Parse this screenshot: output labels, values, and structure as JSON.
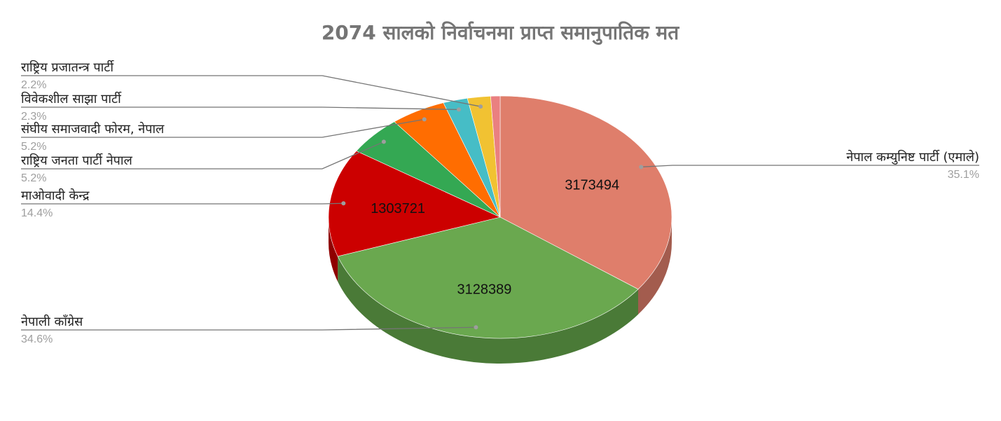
{
  "chart_data": {
    "type": "pie",
    "title": "2074 सालको निर्वाचनमा प्राप्त समानुपातिक मत",
    "slices": [
      {
        "label": "नेपाल कम्युनिष्ट पार्टी (एमाले)",
        "percent": "35.1%",
        "value": 3173494,
        "value_label": "3173494",
        "color": "#df7e6b",
        "side": "#a35c4e"
      },
      {
        "label": "नेपाली काँग्रेस",
        "percent": "34.6%",
        "value": 3128389,
        "value_label": "3128389",
        "color": "#6aa84f",
        "side": "#4a7a37"
      },
      {
        "label": "माओवादी केन्द्र",
        "percent": "14.4%",
        "value": 1303721,
        "value_label": "1303721",
        "color": "#cc0000",
        "side": "#8f0000"
      },
      {
        "label": "राष्ट्रिय जनता पार्टी नेपाल",
        "percent": "5.2%",
        "value": 472254,
        "value_label": "",
        "color": "#34a853",
        "side": "#25763b"
      },
      {
        "label": "संघीय समाजवादी फोरम, नेपाल",
        "percent": "5.2%",
        "value": 470201,
        "value_label": "",
        "color": "#ff6d01",
        "side": "#b34d01"
      },
      {
        "label": "विवेकशील साझा पार्टी",
        "percent": "2.3%",
        "value": 208000,
        "value_label": "",
        "color": "#46bdc6",
        "side": "#31858b"
      },
      {
        "label": "राष्ट्रिय प्रजातन्त्र पार्टी",
        "percent": "2.2%",
        "value": 196782,
        "value_label": "",
        "color": "#f1c232",
        "side": "#a98823"
      },
      {
        "label": "",
        "percent": "",
        "value": 80000,
        "value_label": "",
        "color": "#ea8080",
        "side": "#a45a5a"
      }
    ],
    "legend_position": "labeled-callouts",
    "style": "3d"
  }
}
